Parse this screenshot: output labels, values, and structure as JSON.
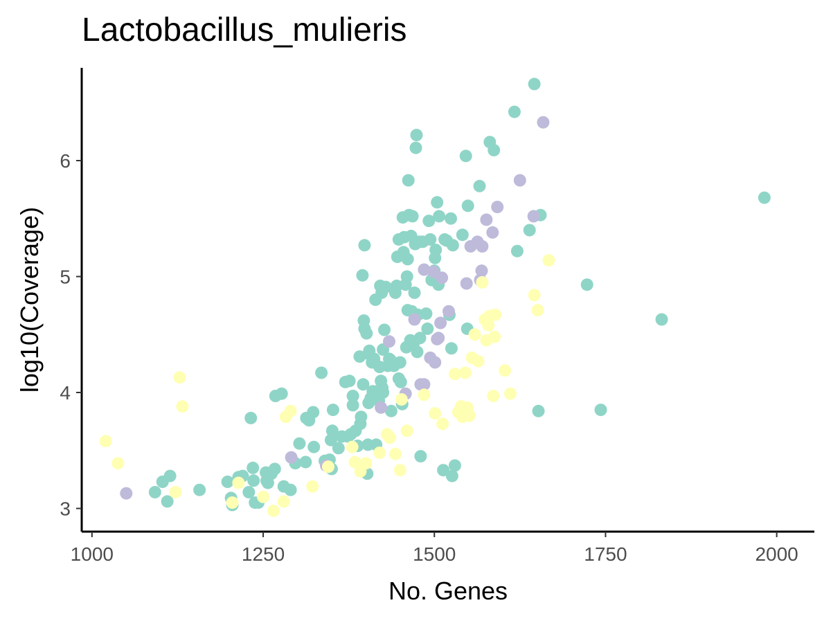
{
  "chart_data": {
    "type": "scatter",
    "title": "Lactobacillus_mulieris",
    "xlabel": "No. Genes",
    "ylabel": "log10(Coverage)",
    "xlim": [
      985,
      2055
    ],
    "ylim": [
      2.8,
      6.8
    ],
    "xticks": [
      1000,
      1250,
      1500,
      1750,
      2000
    ],
    "xtick_labels": [
      "1000",
      "1250",
      "1500",
      "1750",
      "2000"
    ],
    "yticks": [
      3,
      4,
      5,
      6
    ],
    "ytick_labels": [
      "3",
      "4",
      "5",
      "6"
    ],
    "grid": false,
    "legend": "none",
    "colors": {
      "teal": "#8fd5c7",
      "lavender": "#bebada",
      "yellow": "#ffffb3"
    },
    "series": [
      {
        "color": "#8fd5c7",
        "points": [
          [
            1092,
            3.14
          ],
          [
            1103,
            3.23
          ],
          [
            1110,
            3.06
          ],
          [
            1114,
            3.28
          ],
          [
            1157,
            3.16
          ],
          [
            1198,
            3.23
          ],
          [
            1203,
            3.09
          ],
          [
            1205,
            3.03
          ],
          [
            1214,
            3.27
          ],
          [
            1220,
            3.28
          ],
          [
            1229,
            3.14
          ],
          [
            1232,
            3.78
          ],
          [
            1235,
            3.35
          ],
          [
            1236,
            3.24
          ],
          [
            1238,
            3.05
          ],
          [
            1243,
            3.05
          ],
          [
            1254,
            3.31
          ],
          [
            1255,
            3.24
          ],
          [
            1257,
            3.22
          ],
          [
            1262,
            3.3
          ],
          [
            1267,
            3.34
          ],
          [
            1268,
            3.97
          ],
          [
            1277,
            3.99
          ],
          [
            1280,
            3.19
          ],
          [
            1290,
            3.16
          ],
          [
            1297,
            3.39
          ],
          [
            1303,
            3.56
          ],
          [
            1312,
            3.4
          ],
          [
            1313,
            3.78
          ],
          [
            1317,
            3.76
          ],
          [
            1323,
            3.83
          ],
          [
            1324,
            3.53
          ],
          [
            1335,
            4.17
          ],
          [
            1340,
            3.41
          ],
          [
            1347,
            3.42
          ],
          [
            1350,
            3.34
          ],
          [
            1349,
            3.59
          ],
          [
            1351,
            3.67
          ],
          [
            1352,
            3.85
          ],
          [
            1360,
            3.52
          ],
          [
            1365,
            3.62
          ],
          [
            1370,
            4.09
          ],
          [
            1376,
            4.1
          ],
          [
            1374,
            3.62
          ],
          [
            1378,
            3.64
          ],
          [
            1381,
            3.97
          ],
          [
            1381,
            3.89
          ],
          [
            1385,
            3.67
          ],
          [
            1388,
            3.54
          ],
          [
            1391,
            4.31
          ],
          [
            1392,
            3.73
          ],
          [
            1393,
            3.79
          ],
          [
            1395,
            5.01
          ],
          [
            1396,
            4.07
          ],
          [
            1397,
            4.62
          ],
          [
            1398,
            4.55
          ],
          [
            1398,
            5.27
          ],
          [
            1401,
            4.51
          ],
          [
            1402,
            3.3
          ],
          [
            1403,
            3.55
          ],
          [
            1404,
            3.91
          ],
          [
            1405,
            4.33
          ],
          [
            1405,
            4.36
          ],
          [
            1407,
            3.95
          ],
          [
            1409,
            4.26
          ],
          [
            1410,
            4.01
          ],
          [
            1412,
            4.29
          ],
          [
            1414,
            4.8
          ],
          [
            1415,
            3.55
          ],
          [
            1416,
            4.01
          ],
          [
            1418,
            3.96
          ],
          [
            1419,
            3.93
          ],
          [
            1420,
            4.22
          ],
          [
            1421,
            4.92
          ],
          [
            1422,
            4.1
          ],
          [
            1423,
            4.86
          ],
          [
            1424,
            4.04
          ],
          [
            1425,
            4.0
          ],
          [
            1425,
            4.37
          ],
          [
            1427,
            4.54
          ],
          [
            1429,
            4.91
          ],
          [
            1432,
            4.23
          ],
          [
            1434,
            4.29
          ],
          [
            1436,
            4.28
          ],
          [
            1437,
            3.84
          ],
          [
            1441,
            4.23
          ],
          [
            1443,
            4.86
          ],
          [
            1445,
            4.92
          ],
          [
            1446,
            5.17
          ],
          [
            1448,
            5.32
          ],
          [
            1448,
            4.12
          ],
          [
            1450,
            4.26
          ],
          [
            1451,
            4.09
          ],
          [
            1453,
            3.9
          ],
          [
            1454,
            5.51
          ],
          [
            1455,
            5.21
          ],
          [
            1456,
            5.34
          ],
          [
            1458,
            4.93
          ],
          [
            1459,
            4.39
          ],
          [
            1460,
            5.0
          ],
          [
            1461,
            5.15
          ],
          [
            1461,
            4.71
          ],
          [
            1462,
            5.83
          ],
          [
            1463,
            5.53
          ],
          [
            1465,
            4.45
          ],
          [
            1466,
            5.35
          ],
          [
            1467,
            4.7
          ],
          [
            1468,
            5.52
          ],
          [
            1470,
            4.43
          ],
          [
            1471,
            4.86
          ],
          [
            1472,
            5.28
          ],
          [
            1473,
            6.11
          ],
          [
            1474,
            6.22
          ],
          [
            1475,
            4.35
          ],
          [
            1476,
            4.67
          ],
          [
            1478,
            5.3
          ],
          [
            1479,
            4.47
          ],
          [
            1480,
            3.45
          ],
          [
            1483,
            5.3
          ],
          [
            1488,
            4.68
          ],
          [
            1490,
            4.55
          ],
          [
            1492,
            5.48
          ],
          [
            1494,
            5.32
          ],
          [
            1496,
            4.97
          ],
          [
            1500,
            5.05
          ],
          [
            1501,
            5.16
          ],
          [
            1502,
            5.23
          ],
          [
            1504,
            5.64
          ],
          [
            1506,
            4.93
          ],
          [
            1507,
            5.52
          ],
          [
            1513,
            3.33
          ],
          [
            1515,
            5.32
          ],
          [
            1518,
            5.31
          ],
          [
            1522,
            4.67
          ],
          [
            1524,
            5.5
          ],
          [
            1525,
            4.38
          ],
          [
            1526,
            3.28
          ],
          [
            1527,
            5.27
          ],
          [
            1530,
            3.37
          ],
          [
            1541,
            5.36
          ],
          [
            1546,
            6.04
          ],
          [
            1548,
            4.55
          ],
          [
            1549,
            5.61
          ],
          [
            1566,
            5.78
          ],
          [
            1581,
            6.16
          ],
          [
            1587,
            6.09
          ],
          [
            1617,
            6.42
          ],
          [
            1621,
            5.22
          ],
          [
            1639,
            5.4
          ],
          [
            1646,
            6.66
          ],
          [
            1652,
            3.84
          ],
          [
            1655,
            5.53
          ],
          [
            1723,
            4.93
          ],
          [
            1743,
            3.85
          ],
          [
            1832,
            4.63
          ],
          [
            1982,
            5.68
          ]
        ]
      },
      {
        "color": "#bebada",
        "points": [
          [
            1050,
            3.13
          ],
          [
            1291,
            3.44
          ],
          [
            1342,
            3.37
          ],
          [
            1422,
            3.87
          ],
          [
            1434,
            4.44
          ],
          [
            1458,
            3.99
          ],
          [
            1471,
            4.63
          ],
          [
            1480,
            4.07
          ],
          [
            1485,
            4.07
          ],
          [
            1485,
            5.06
          ],
          [
            1494,
            4.3
          ],
          [
            1499,
            5.04
          ],
          [
            1501,
            4.26
          ],
          [
            1504,
            4.46
          ],
          [
            1506,
            4.47
          ],
          [
            1509,
            4.6
          ],
          [
            1511,
            4.99
          ],
          [
            1521,
            4.7
          ],
          [
            1547,
            4.94
          ],
          [
            1553,
            5.26
          ],
          [
            1563,
            5.3
          ],
          [
            1567,
            4.97
          ],
          [
            1569,
            5.05
          ],
          [
            1570,
            5.26
          ],
          [
            1576,
            5.49
          ],
          [
            1585,
            5.38
          ],
          [
            1592,
            5.6
          ],
          [
            1625,
            5.83
          ],
          [
            1645,
            5.52
          ],
          [
            1659,
            6.33
          ]
        ]
      },
      {
        "color": "#ffffb3",
        "points": [
          [
            1020,
            3.58
          ],
          [
            1038,
            3.39
          ],
          [
            1122,
            3.14
          ],
          [
            1128,
            4.13
          ],
          [
            1132,
            3.88
          ],
          [
            1205,
            3.05
          ],
          [
            1214,
            3.22
          ],
          [
            1250,
            3.1
          ],
          [
            1265,
            2.98
          ],
          [
            1280,
            3.06
          ],
          [
            1283,
            3.79
          ],
          [
            1290,
            3.84
          ],
          [
            1322,
            3.19
          ],
          [
            1345,
            3.36
          ],
          [
            1380,
            3.53
          ],
          [
            1384,
            3.4
          ],
          [
            1392,
            3.32
          ],
          [
            1400,
            3.39
          ],
          [
            1420,
            3.48
          ],
          [
            1431,
            3.64
          ],
          [
            1435,
            3.61
          ],
          [
            1443,
            3.47
          ],
          [
            1450,
            3.33
          ],
          [
            1452,
            3.94
          ],
          [
            1460,
            3.67
          ],
          [
            1485,
            3.98
          ],
          [
            1501,
            3.82
          ],
          [
            1512,
            3.73
          ],
          [
            1530,
            4.16
          ],
          [
            1535,
            3.83
          ],
          [
            1539,
            3.88
          ],
          [
            1541,
            3.79
          ],
          [
            1545,
            4.17
          ],
          [
            1548,
            3.87
          ],
          [
            1551,
            3.8
          ],
          [
            1555,
            4.3
          ],
          [
            1559,
            4.5
          ],
          [
            1564,
            4.27
          ],
          [
            1570,
            4.95
          ],
          [
            1574,
            4.63
          ],
          [
            1576,
            4.45
          ],
          [
            1579,
            4.58
          ],
          [
            1581,
            4.66
          ],
          [
            1586,
            3.97
          ],
          [
            1588,
            4.48
          ],
          [
            1589,
            4.67
          ],
          [
            1603,
            4.19
          ],
          [
            1611,
            3.99
          ],
          [
            1646,
            4.84
          ],
          [
            1651,
            4.71
          ],
          [
            1667,
            5.14
          ]
        ]
      }
    ]
  }
}
